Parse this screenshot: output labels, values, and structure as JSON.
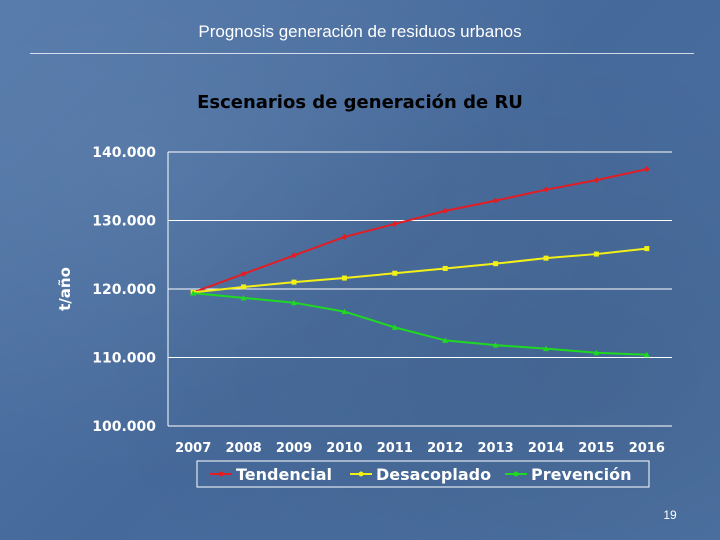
{
  "slide": {
    "title": "Prognosis generación de residuos urbanos",
    "page_number": "19"
  },
  "colors": {
    "text": "#ffffff",
    "grid": "#ffffff",
    "legend_border": "#ffffff",
    "tendencial": "#e21d24",
    "desacoplado": "#f3f018",
    "prevencion": "#1fd821"
  },
  "chart_data": {
    "type": "line",
    "title": "Escenarios de generación de RU",
    "xlabel": "",
    "ylabel": "t/año",
    "ylim": [
      100000,
      140000
    ],
    "yticks": [
      100000,
      110000,
      120000,
      130000,
      140000
    ],
    "ytick_labels": [
      "100.000",
      "110.000",
      "120.000",
      "130.000",
      "140.000"
    ],
    "categories": [
      "2007",
      "2008",
      "2009",
      "2010",
      "2011",
      "2012",
      "2013",
      "2014",
      "2015",
      "2016"
    ],
    "grid": true,
    "legend": "bottom",
    "series": [
      {
        "name": "Tendencial",
        "color_key": "tendencial",
        "values": [
          119500,
          122200,
          124900,
          127600,
          129500,
          131400,
          132900,
          134500,
          135900,
          137500
        ]
      },
      {
        "name": "Desacoplado",
        "color_key": "desacoplado",
        "values": [
          119500,
          120300,
          121000,
          121600,
          122300,
          123000,
          123700,
          124500,
          125100,
          125900
        ]
      },
      {
        "name": "Prevención",
        "color_key": "prevencion",
        "values": [
          119400,
          118700,
          118000,
          116700,
          114400,
          112500,
          111800,
          111300,
          110700,
          110400
        ]
      }
    ]
  }
}
